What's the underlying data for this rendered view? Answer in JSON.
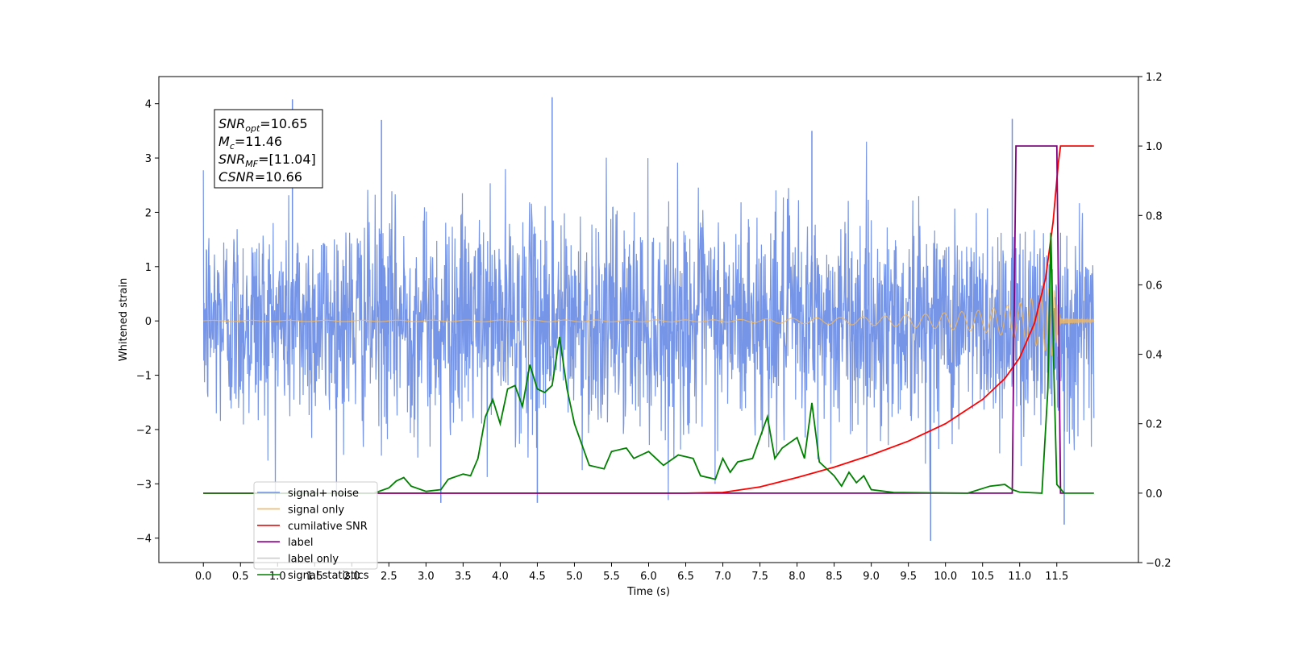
{
  "chart_data": {
    "type": "line",
    "xlabel": "Time (s)",
    "ylabel": "Whitened strain",
    "xlim": [
      -0.6,
      12.6
    ],
    "ylim_left": [
      -4.45,
      4.5
    ],
    "ylim_right": [
      -0.2,
      1.2
    ],
    "x_ticks": [
      "0.0",
      "0.5",
      "1.0",
      "1.5",
      "2.0",
      "2.5",
      "3.0",
      "3.5",
      "4.0",
      "4.5",
      "5.0",
      "5.5",
      "6.0",
      "6.5",
      "7.0",
      "7.5",
      "8.0",
      "8.5",
      "9.0",
      "9.5",
      "10.0",
      "10.5",
      "11.0",
      "11.5"
    ],
    "y_ticks_left": [
      "4",
      "3",
      "2",
      "1",
      "0",
      "−1",
      "−2",
      "−3",
      "−4"
    ],
    "y_ticks_right": [
      "1.2",
      "1.0",
      "0.8",
      "0.6",
      "0.4",
      "0.2",
      "0.0",
      "−0.2"
    ],
    "annotation": {
      "lines": [
        {
          "label": "SNR",
          "sub": "opt",
          "value": "=10.65"
        },
        {
          "label": "M",
          "sub": "c",
          "value": "=11.46"
        },
        {
          "label": "SNR",
          "sub": "MF",
          "value": "=[11.04]"
        },
        {
          "label": "CSNR",
          "sub": "",
          "value": "=10.66"
        }
      ]
    },
    "legend_position": "lower-left",
    "series": [
      {
        "name": "signal+ noise",
        "color": "#6f8fe6",
        "axis": "left",
        "x_range": [
          0,
          12.0
        ],
        "amplitude_band": [
          -1.6,
          1.6
        ],
        "noise_peaks": [
          {
            "x": 1.2,
            "y": 4.08
          },
          {
            "x": 4.7,
            "y": 4.12
          },
          {
            "x": 2.4,
            "y": 3.7
          },
          {
            "x": 10.9,
            "y": 3.72
          },
          {
            "x": 8.2,
            "y": 3.5
          },
          {
            "x": 9.8,
            "y": -4.05
          },
          {
            "x": 11.6,
            "y": -3.75
          },
          {
            "x": 4.5,
            "y": -3.35
          },
          {
            "x": 3.2,
            "y": -3.35
          }
        ]
      },
      {
        "name": "signal only",
        "color": "#f5b85a",
        "axis": "left",
        "envelope": [
          {
            "x": 0.0,
            "y": 0.01
          },
          {
            "x": 7.0,
            "y": 0.02
          },
          {
            "x": 8.0,
            "y": 0.05
          },
          {
            "x": 9.0,
            "y": 0.08
          },
          {
            "x": 10.0,
            "y": 0.15
          },
          {
            "x": 10.5,
            "y": 0.2
          },
          {
            "x": 11.0,
            "y": 0.33
          },
          {
            "x": 11.3,
            "y": 0.5
          },
          {
            "x": 11.45,
            "y": 0.65
          },
          {
            "x": 11.55,
            "y": 0.05
          },
          {
            "x": 12.0,
            "y": 0.02
          }
        ]
      },
      {
        "name": "cumilative SNR",
        "color": "#ff0000",
        "axis": "right",
        "points": [
          {
            "x": 0.0,
            "y": 0.0
          },
          {
            "x": 6.5,
            "y": 0.0
          },
          {
            "x": 7.0,
            "y": 0.002
          },
          {
            "x": 7.5,
            "y": 0.018
          },
          {
            "x": 8.0,
            "y": 0.045
          },
          {
            "x": 8.5,
            "y": 0.075
          },
          {
            "x": 9.0,
            "y": 0.11
          },
          {
            "x": 9.5,
            "y": 0.15
          },
          {
            "x": 10.0,
            "y": 0.2
          },
          {
            "x": 10.5,
            "y": 0.27
          },
          {
            "x": 10.8,
            "y": 0.33
          },
          {
            "x": 11.0,
            "y": 0.39
          },
          {
            "x": 11.2,
            "y": 0.49
          },
          {
            "x": 11.35,
            "y": 0.62
          },
          {
            "x": 11.45,
            "y": 0.78
          },
          {
            "x": 11.52,
            "y": 0.95
          },
          {
            "x": 11.55,
            "y": 1.0
          },
          {
            "x": 12.0,
            "y": 1.0
          }
        ]
      },
      {
        "name": "label",
        "color": "#800080",
        "axis": "right",
        "points": [
          {
            "x": 0.0,
            "y": 0.0
          },
          {
            "x": 10.9,
            "y": 0.0
          },
          {
            "x": 10.95,
            "y": 1.0
          },
          {
            "x": 11.5,
            "y": 1.0
          },
          {
            "x": 11.55,
            "y": 0.0
          },
          {
            "x": 11.6,
            "y": 0.0
          }
        ]
      },
      {
        "name": "label only",
        "color": "#cccccc",
        "axis": "right",
        "points": []
      },
      {
        "name": "signal statistics",
        "color": "#008000",
        "axis": "right",
        "points": [
          {
            "x": 0.0,
            "y": 0.0
          },
          {
            "x": 2.3,
            "y": 0.0
          },
          {
            "x": 2.5,
            "y": 0.015
          },
          {
            "x": 2.6,
            "y": 0.035
          },
          {
            "x": 2.7,
            "y": 0.045
          },
          {
            "x": 2.8,
            "y": 0.02
          },
          {
            "x": 3.0,
            "y": 0.005
          },
          {
            "x": 3.2,
            "y": 0.01
          },
          {
            "x": 3.3,
            "y": 0.04
          },
          {
            "x": 3.5,
            "y": 0.055
          },
          {
            "x": 3.6,
            "y": 0.05
          },
          {
            "x": 3.7,
            "y": 0.1
          },
          {
            "x": 3.8,
            "y": 0.22
          },
          {
            "x": 3.9,
            "y": 0.27
          },
          {
            "x": 4.0,
            "y": 0.2
          },
          {
            "x": 4.1,
            "y": 0.3
          },
          {
            "x": 4.2,
            "y": 0.31
          },
          {
            "x": 4.3,
            "y": 0.25
          },
          {
            "x": 4.4,
            "y": 0.37
          },
          {
            "x": 4.5,
            "y": 0.3
          },
          {
            "x": 4.6,
            "y": 0.29
          },
          {
            "x": 4.7,
            "y": 0.31
          },
          {
            "x": 4.8,
            "y": 0.45
          },
          {
            "x": 4.9,
            "y": 0.3
          },
          {
            "x": 5.0,
            "y": 0.2
          },
          {
            "x": 5.1,
            "y": 0.14
          },
          {
            "x": 5.2,
            "y": 0.08
          },
          {
            "x": 5.4,
            "y": 0.07
          },
          {
            "x": 5.5,
            "y": 0.12
          },
          {
            "x": 5.7,
            "y": 0.13
          },
          {
            "x": 5.8,
            "y": 0.1
          },
          {
            "x": 6.0,
            "y": 0.12
          },
          {
            "x": 6.1,
            "y": 0.1
          },
          {
            "x": 6.2,
            "y": 0.08
          },
          {
            "x": 6.4,
            "y": 0.11
          },
          {
            "x": 6.6,
            "y": 0.1
          },
          {
            "x": 6.7,
            "y": 0.05
          },
          {
            "x": 6.9,
            "y": 0.04
          },
          {
            "x": 7.0,
            "y": 0.1
          },
          {
            "x": 7.1,
            "y": 0.06
          },
          {
            "x": 7.2,
            "y": 0.09
          },
          {
            "x": 7.4,
            "y": 0.1
          },
          {
            "x": 7.6,
            "y": 0.22
          },
          {
            "x": 7.7,
            "y": 0.1
          },
          {
            "x": 7.8,
            "y": 0.13
          },
          {
            "x": 8.0,
            "y": 0.16
          },
          {
            "x": 8.1,
            "y": 0.1
          },
          {
            "x": 8.2,
            "y": 0.26
          },
          {
            "x": 8.3,
            "y": 0.09
          },
          {
            "x": 8.5,
            "y": 0.05
          },
          {
            "x": 8.6,
            "y": 0.02
          },
          {
            "x": 8.7,
            "y": 0.06
          },
          {
            "x": 8.8,
            "y": 0.03
          },
          {
            "x": 8.9,
            "y": 0.05
          },
          {
            "x": 9.0,
            "y": 0.01
          },
          {
            "x": 9.3,
            "y": 0.002
          },
          {
            "x": 10.3,
            "y": 0.0
          },
          {
            "x": 10.6,
            "y": 0.02
          },
          {
            "x": 10.8,
            "y": 0.025
          },
          {
            "x": 10.9,
            "y": 0.01
          },
          {
            "x": 11.0,
            "y": 0.003
          },
          {
            "x": 11.3,
            "y": 0.0
          },
          {
            "x": 11.38,
            "y": 0.3
          },
          {
            "x": 11.42,
            "y": 0.75
          },
          {
            "x": 11.46,
            "y": 0.35
          },
          {
            "x": 11.5,
            "y": 0.025
          },
          {
            "x": 11.6,
            "y": 0.0
          },
          {
            "x": 12.0,
            "y": 0.0
          }
        ]
      }
    ]
  }
}
